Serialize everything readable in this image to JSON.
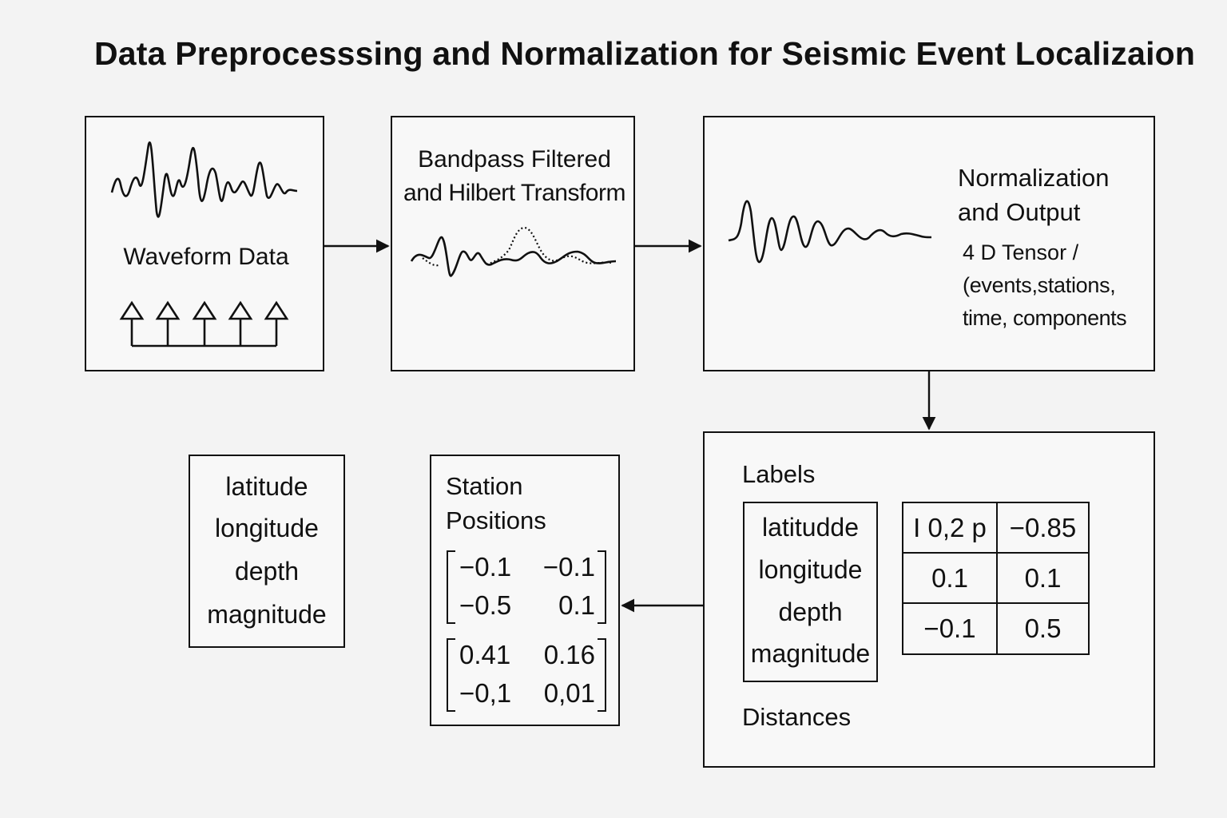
{
  "title": "Data Preprocesssing and Normalization for Seismic Event Localizaion",
  "waveform_box": {
    "label": "Waveform Data"
  },
  "filter_box": {
    "label_line1": "Bandpass Filtered",
    "label_line2": "and Hilbert Transform"
  },
  "normalization_box": {
    "label_line1": "Normalization",
    "label_line2": "and Output",
    "tensor_line1": "4 D Tensor /",
    "tensor_line2": "(events,stations,",
    "tensor_line3": "time, components"
  },
  "labels_box": {
    "heading": "Labels",
    "fields": [
      "latitudde",
      "longitude",
      "depth",
      "magnitude"
    ],
    "table": [
      [
        "I 0,2 p",
        "−0.85"
      ],
      [
        "0.1",
        "0.1"
      ],
      [
        "−0.1",
        "0.5"
      ]
    ],
    "footer": "Distances"
  },
  "station_box": {
    "heading_line1": "Station",
    "heading_line2": "Positions",
    "matrix1": [
      [
        "−0.1",
        "−0.1"
      ],
      [
        "−0.5",
        "0.1"
      ]
    ],
    "matrix2": [
      [
        "0.41",
        "0.16"
      ],
      [
        "−0,1",
        "0,01"
      ]
    ]
  },
  "output_labels_box": {
    "fields": [
      "latitude",
      "longitude",
      "depth",
      "magnitude"
    ]
  }
}
